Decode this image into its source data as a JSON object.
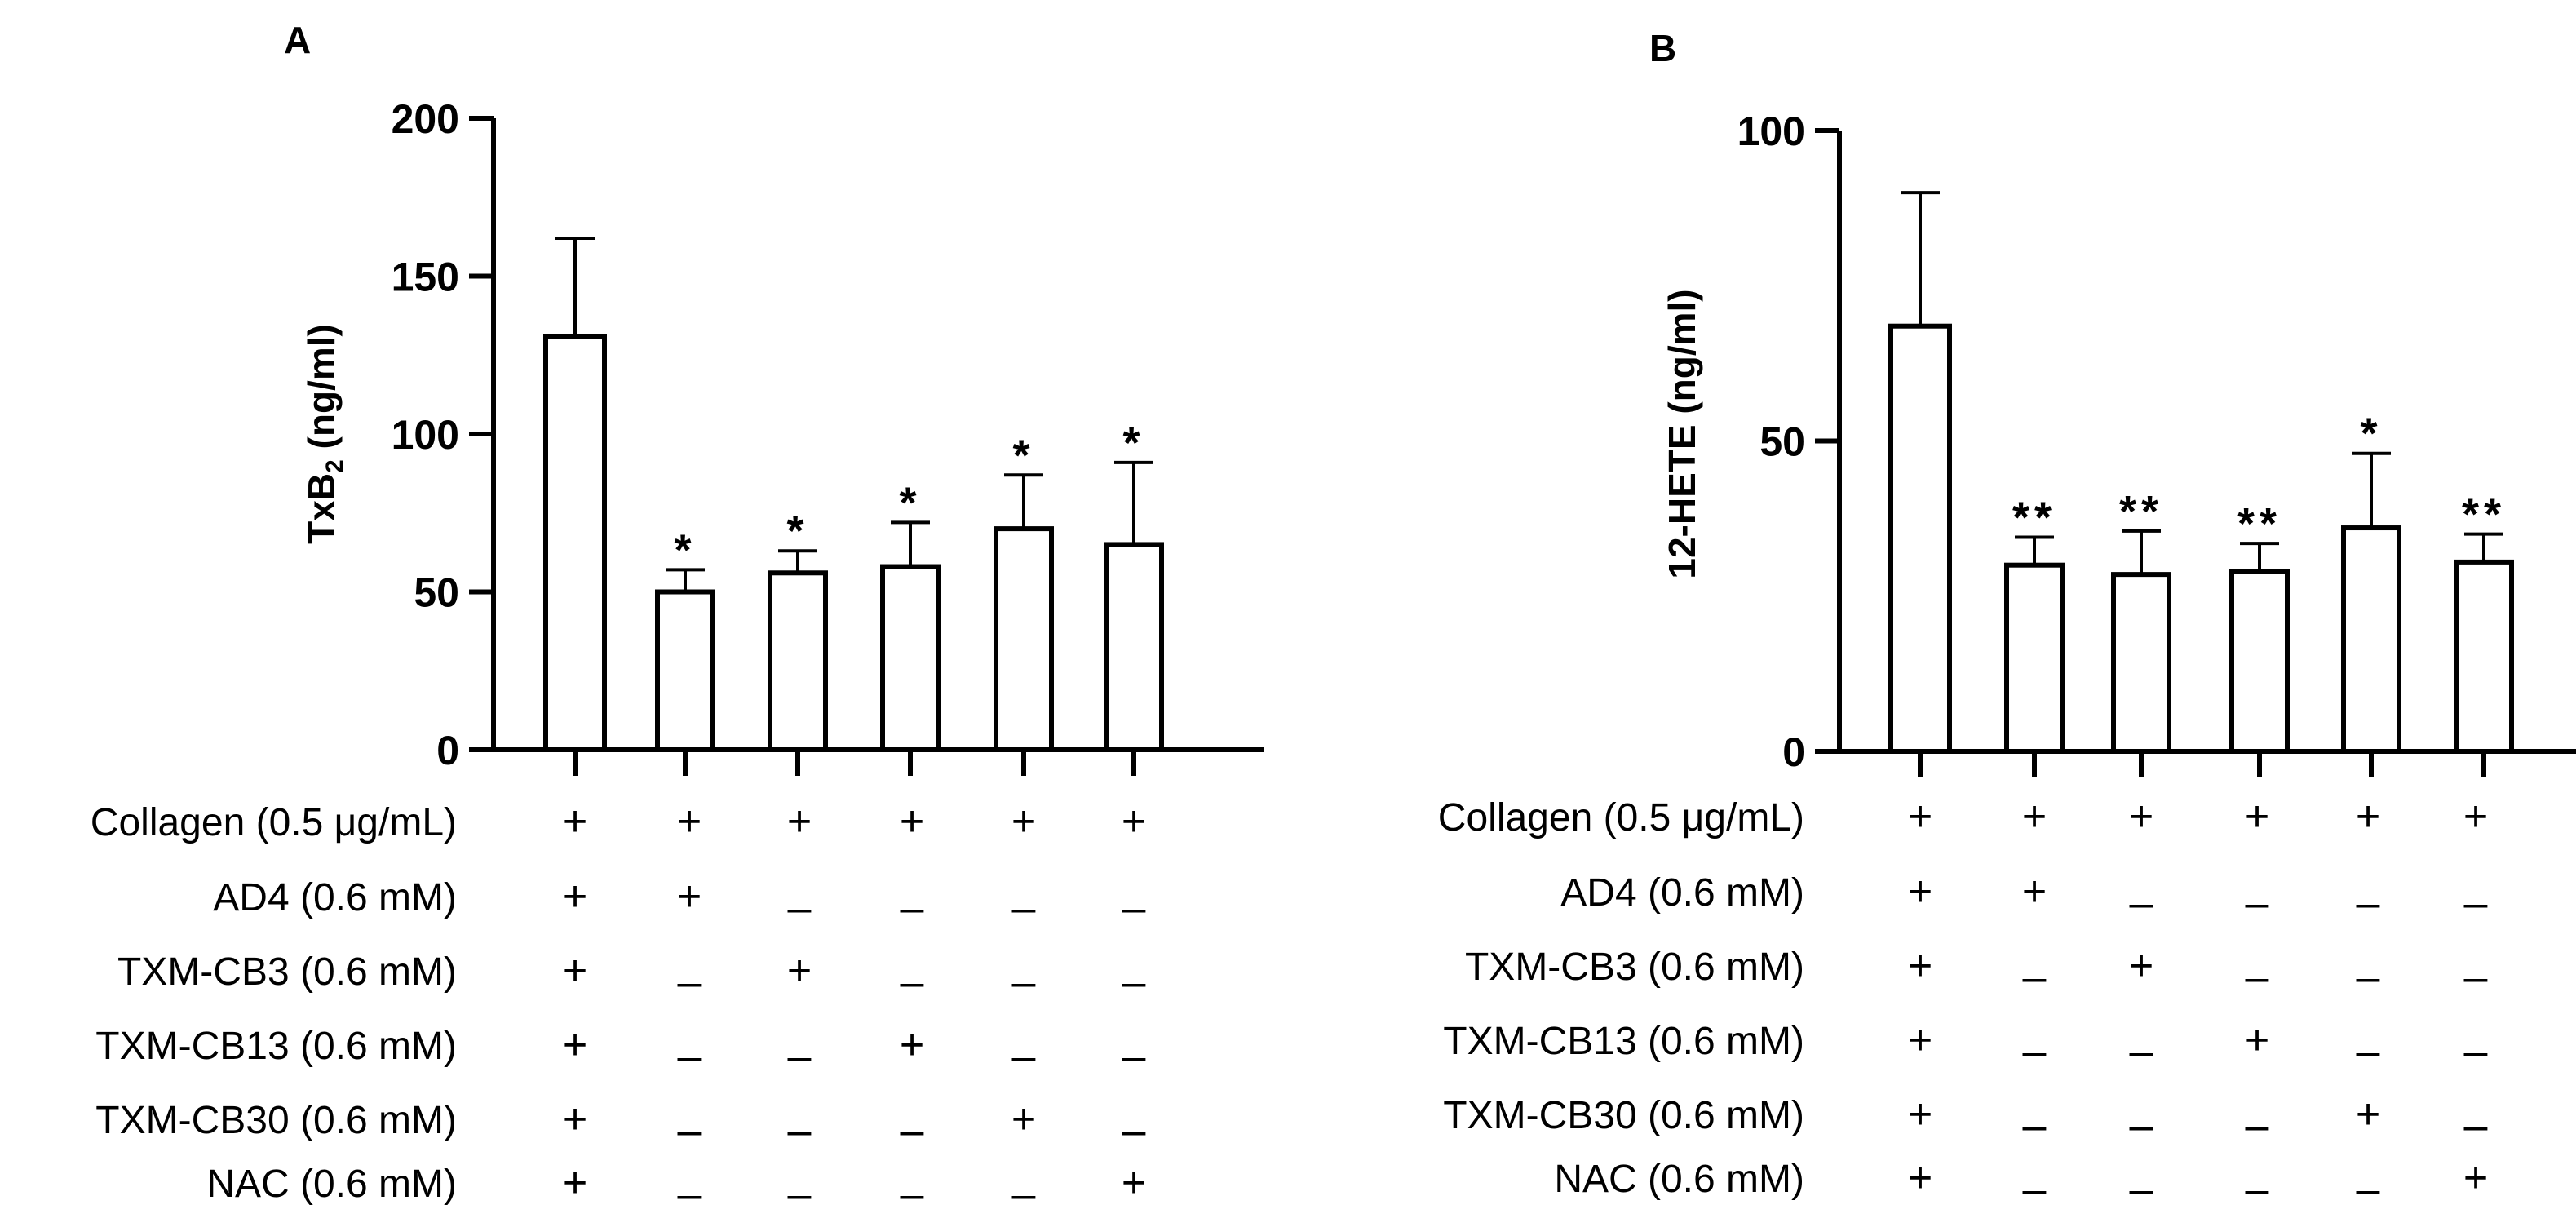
{
  "charts": [
    {
      "chart_data": {
        "type": "bar",
        "panel_label": "A",
        "ylabel": "TxB",
        "ylabel_subscript": "2",
        "ylabel_suffix": " (ng/ml)",
        "ylim": [
          0,
          200
        ],
        "yticks": [
          "0",
          "50",
          "100",
          "150",
          "200"
        ],
        "ytick_values": [
          0,
          50,
          100,
          150,
          200
        ],
        "values": [
          131,
          50,
          56,
          58,
          70,
          65
        ],
        "errors": [
          31,
          7,
          7,
          14,
          17,
          26
        ],
        "significance": [
          "",
          "*",
          "*",
          "*",
          "*",
          "*"
        ]
      }
    },
    {
      "chart_data": {
        "type": "bar",
        "panel_label": "B",
        "ylabel": "12-HETE (ng/ml)",
        "ylabel_subscript": "",
        "ylabel_suffix": "",
        "ylim": [
          0,
          100
        ],
        "yticks": [
          "0",
          "50",
          "100"
        ],
        "ytick_values": [
          0,
          50,
          100
        ],
        "values": [
          68.5,
          30,
          28.5,
          29,
          36,
          30.5
        ],
        "errors": [
          21.5,
          4.5,
          7,
          4.5,
          12,
          4.5
        ],
        "significance": [
          "",
          "**",
          "**",
          "**",
          "*",
          "**"
        ]
      }
    }
  ],
  "conditions": [
    {
      "label": "Collagen (0.5 μg/mL)",
      "marks": [
        "+",
        "+",
        "+",
        "+",
        "+",
        "+"
      ]
    },
    {
      "label": "AD4 (0.6 mM)",
      "marks": [
        "+",
        "+",
        "–",
        "–",
        "–",
        "–"
      ]
    },
    {
      "label": "TXM-CB3 (0.6 mM)",
      "marks": [
        "+",
        "–",
        "+",
        "–",
        "–",
        "–"
      ]
    },
    {
      "label": "TXM-CB13 (0.6 mM)",
      "marks": [
        "+",
        "–",
        "–",
        "+",
        "–",
        "–"
      ]
    },
    {
      "label": "TXM-CB30 (0.6 mM)",
      "marks": [
        "+",
        "–",
        "–",
        "–",
        "+",
        "–"
      ]
    },
    {
      "label": "NAC (0.6 mM)",
      "marks": [
        "+",
        "–",
        "–",
        "–",
        "–",
        "+"
      ]
    }
  ]
}
